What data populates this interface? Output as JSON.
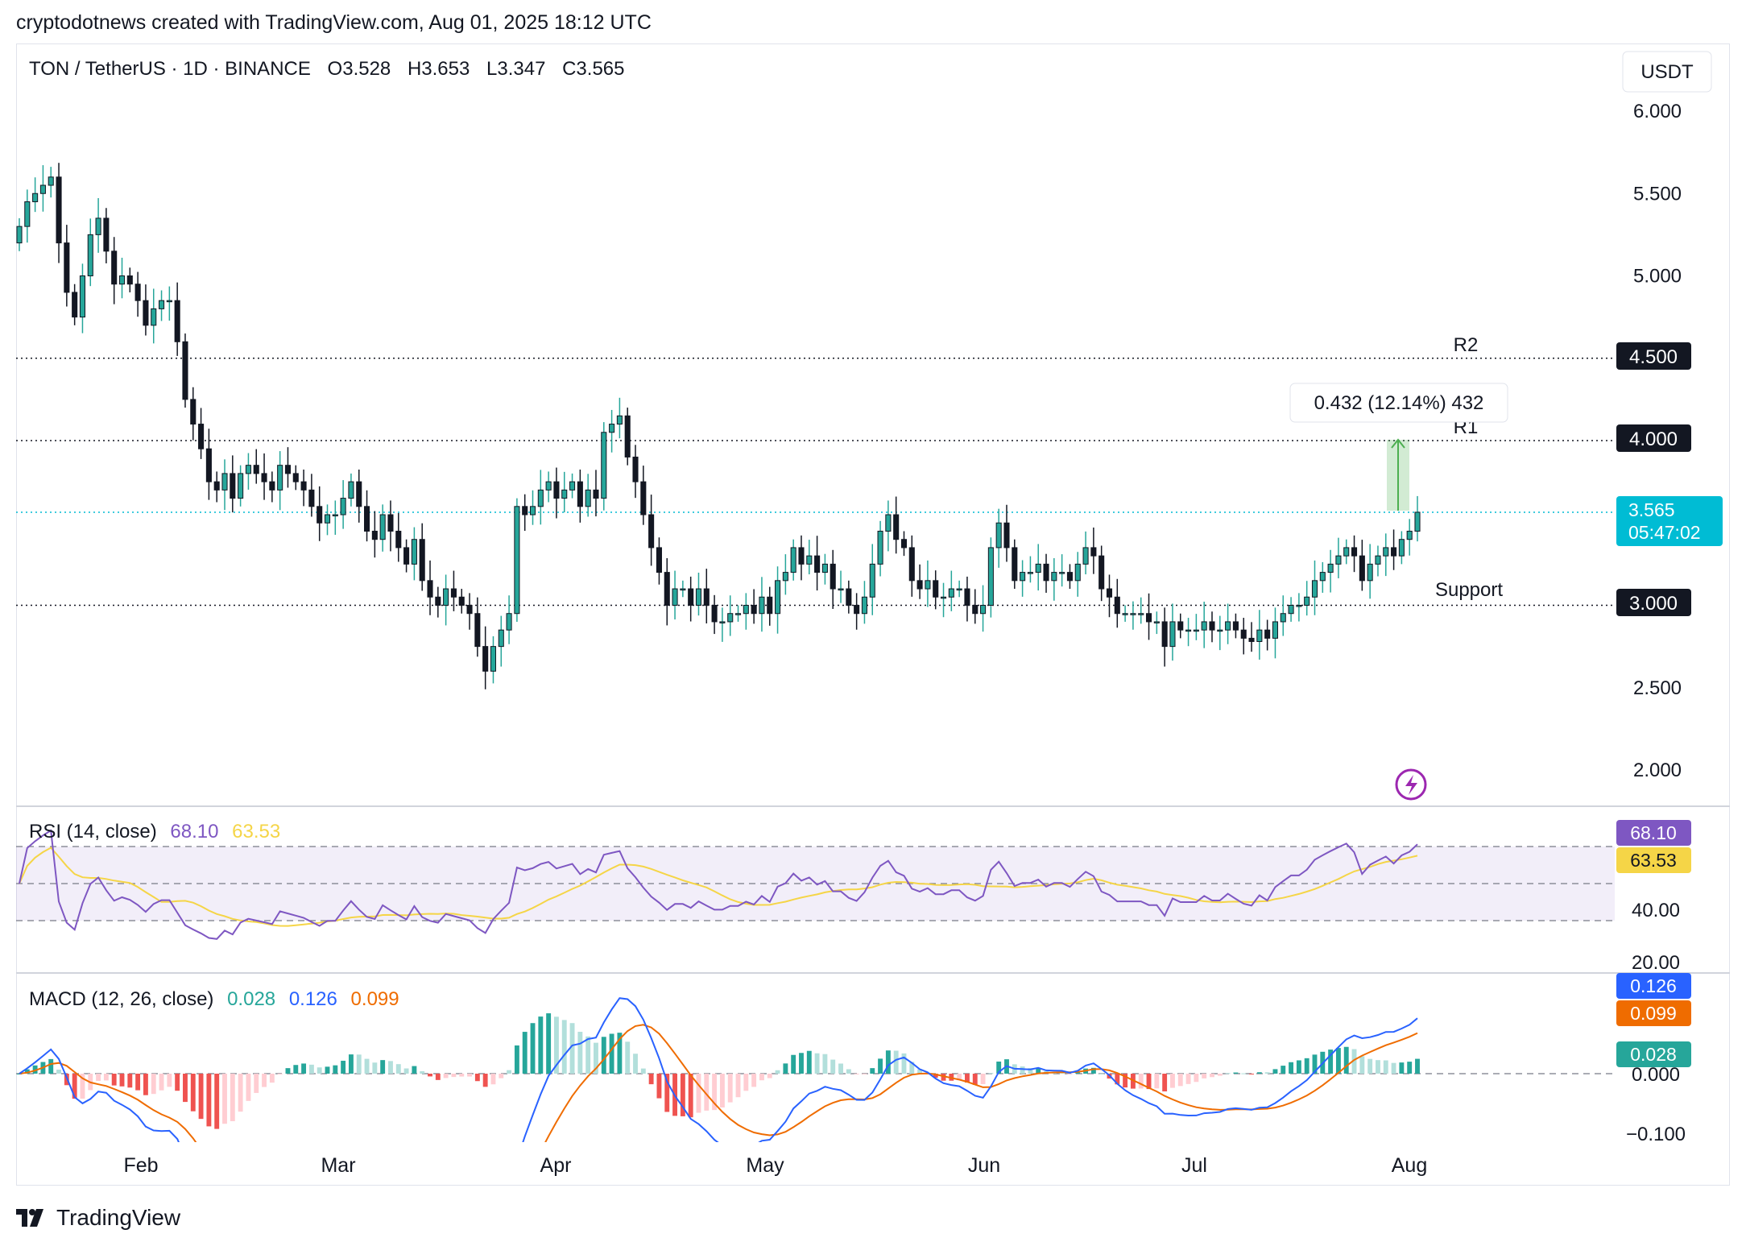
{
  "attribution": "cryptodotnews created with TradingView.com, Aug 01, 2025 18:12 UTC",
  "header": {
    "symbol": "TON / TetherUS · 1D · BINANCE",
    "open": "O3.528",
    "high": "H3.653",
    "low": "L3.347",
    "close": "C3.565",
    "currency": "USDT"
  },
  "colors": {
    "up": "#26a69a",
    "down": "#131722",
    "rsi": "#7e57c2",
    "rsi_ma": "#f5d547",
    "macd": "#2962ff",
    "signal": "#ef6c00",
    "hist_up": "#26a69a",
    "hist_up_light": "#b2dfdb",
    "hist_down": "#ef5350",
    "hist_down_light": "#ffcdd2",
    "price_badge": "#00bcd4",
    "label_bg": "#131722"
  },
  "levels": {
    "r2": {
      "label": "R2",
      "value": 4.5,
      "badge": "4.500"
    },
    "r1": {
      "label": "R1",
      "value": 4.0,
      "badge": "4.000"
    },
    "support": {
      "label": "Support",
      "value": 3.0,
      "badge": "3.000"
    }
  },
  "current_price": {
    "value": 3.565,
    "label": "3.565",
    "countdown": "05:47:02"
  },
  "measure": {
    "text": "0.432 (12.14%) 432",
    "from": 3.565,
    "to": 3.997
  },
  "price_axis": {
    "ticks": [
      "6.000",
      "5.500",
      "5.000",
      "2.500",
      "2.000"
    ]
  },
  "rsi_panel": {
    "title": "RSI (14, close)",
    "rsi_value": "68.10",
    "ma_value": "63.53",
    "ticks": [
      "40.00",
      "20.00"
    ],
    "upper_band": 70,
    "lower_band": 30,
    "mid_band": 50
  },
  "macd_panel": {
    "title": "MACD (12, 26, close)",
    "hist_value": "0.028",
    "macd_value": "0.126",
    "signal_value": "0.099",
    "ticks": [
      "0.000",
      "−0.100"
    ]
  },
  "x_axis": {
    "labels": [
      "Feb",
      "Mar",
      "Apr",
      "May",
      "Jun",
      "Jul",
      "Aug"
    ]
  },
  "footer": {
    "brand": "TradingView"
  },
  "chart_data": {
    "type": "candlestick",
    "title": "TON / TetherUS · 1D · BINANCE",
    "ylim": [
      1.8,
      6.2
    ],
    "price_close_by_day": [
      5.3,
      5.45,
      5.5,
      5.55,
      5.6,
      5.2,
      4.9,
      4.75,
      5.0,
      5.25,
      5.35,
      5.15,
      4.95,
      5.0,
      4.95,
      4.85,
      4.7,
      4.8,
      4.85,
      4.85,
      4.6,
      4.25,
      4.1,
      3.95,
      3.75,
      3.7,
      3.8,
      3.65,
      3.8,
      3.85,
      3.8,
      3.75,
      3.7,
      3.85,
      3.8,
      3.75,
      3.7,
      3.6,
      3.5,
      3.55,
      3.55,
      3.65,
      3.75,
      3.6,
      3.45,
      3.4,
      3.55,
      3.45,
      3.35,
      3.25,
      3.4,
      3.15,
      3.05,
      3.0,
      3.1,
      3.05,
      3.0,
      2.95,
      2.75,
      2.6,
      2.75,
      2.85,
      2.95,
      3.6,
      3.55,
      3.6,
      3.7,
      3.75,
      3.65,
      3.7,
      3.75,
      3.6,
      3.7,
      3.65,
      4.05,
      4.1,
      4.15,
      3.9,
      3.75,
      3.55,
      3.35,
      3.2,
      3.0,
      3.1,
      3.1,
      3.0,
      3.1,
      3.0,
      2.9,
      2.9,
      2.95,
      2.95,
      3.0,
      2.95,
      3.05,
      2.95,
      3.15,
      3.2,
      3.35,
      3.25,
      3.3,
      3.2,
      3.25,
      3.1,
      3.1,
      3.0,
      2.95,
      3.05,
      3.25,
      3.45,
      3.55,
      3.4,
      3.35,
      3.15,
      3.1,
      3.15,
      3.05,
      3.05,
      3.1,
      3.1,
      3.0,
      2.95,
      3.0,
      3.35,
      3.5,
      3.35,
      3.15,
      3.2,
      3.2,
      3.25,
      3.15,
      3.2,
      3.2,
      3.15,
      3.25,
      3.35,
      3.3,
      3.1,
      3.05,
      2.95,
      2.95,
      2.95,
      2.95,
      2.9,
      2.9,
      2.75,
      2.9,
      2.85,
      2.85,
      2.85,
      2.9,
      2.85,
      2.85,
      2.9,
      2.85,
      2.8,
      2.78,
      2.85,
      2.8,
      2.9,
      2.95,
      3.0,
      3.0,
      3.05,
      3.15,
      3.2,
      3.25,
      3.3,
      3.35,
      3.3,
      3.15,
      3.25,
      3.3,
      3.35,
      3.3,
      3.4,
      3.45,
      3.565
    ]
  }
}
